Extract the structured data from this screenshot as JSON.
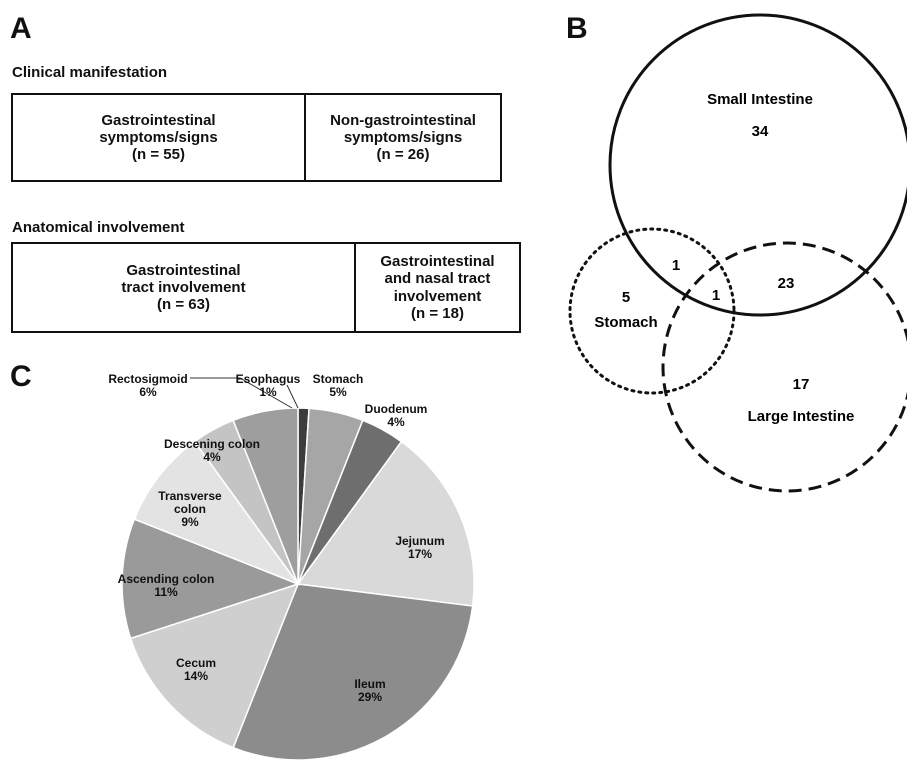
{
  "panels": {
    "a": "A",
    "b": "B",
    "c": "C"
  },
  "panel_a": {
    "sections": [
      {
        "title": "Clinical manifestation",
        "cells": [
          {
            "lines": [
              "Gastrointestinal",
              "symptoms/signs",
              "(n = 55)"
            ]
          },
          {
            "lines": [
              "Non-gastrointestinal",
              "symptoms/signs",
              "(n = 26)"
            ]
          }
        ]
      },
      {
        "title": "Anatomical involvement",
        "cells": [
          {
            "lines": [
              "Gastrointestinal",
              "tract involvement",
              "(n = 63)"
            ]
          },
          {
            "lines": [
              "Gastrointestinal",
              "and nasal tract",
              "involvement",
              "(n = 18)"
            ]
          }
        ]
      }
    ]
  },
  "chart_data": [
    {
      "type": "venn",
      "sets": [
        {
          "name": "Small Intestine",
          "only": "34",
          "style": "solid"
        },
        {
          "name": "Stomach",
          "only": "5",
          "style": "dotted"
        },
        {
          "name": "Large Intestine",
          "only": "17",
          "style": "dashed"
        }
      ],
      "intersections": [
        {
          "sets": [
            "Small Intestine",
            "Stomach"
          ],
          "value": "1"
        },
        {
          "sets": [
            "Small Intestine",
            "Large Intestine"
          ],
          "value": "23"
        },
        {
          "sets": [
            "Small Intestine",
            "Stomach",
            "Large Intestine"
          ],
          "value": "1"
        }
      ]
    },
    {
      "type": "pie",
      "slices": [
        {
          "label": "Esophagus",
          "percent": 1,
          "value_label": "1%",
          "color": "#3c3c3c"
        },
        {
          "label": "Stomach",
          "percent": 5,
          "value_label": "5%",
          "color": "#a6a6a6"
        },
        {
          "label": "Duodenum",
          "percent": 4,
          "value_label": "4%",
          "color": "#6e6e6e"
        },
        {
          "label": "Jejunum",
          "percent": 17,
          "value_label": "17%",
          "color": "#d9d9d9"
        },
        {
          "label": "Ileum",
          "percent": 29,
          "value_label": "29%",
          "color": "#8c8c8c"
        },
        {
          "label": "Cecum",
          "percent": 14,
          "value_label": "14%",
          "color": "#cfcfcf"
        },
        {
          "label": "Ascending colon",
          "percent": 11,
          "value_label": "11%",
          "color": "#9a9a9a"
        },
        {
          "label": "Transverse colon",
          "percent": 9,
          "value_label": "9%",
          "color": "#e3e3e3"
        },
        {
          "label": "Descening colon",
          "percent": 4,
          "value_label": "4%",
          "color": "#c4c4c4"
        },
        {
          "label": "Rectosigmoid",
          "percent": 6,
          "value_label": "6%",
          "color": "#9e9e9e"
        }
      ],
      "start_angle_deg": 0,
      "direction": "clockwise"
    }
  ]
}
